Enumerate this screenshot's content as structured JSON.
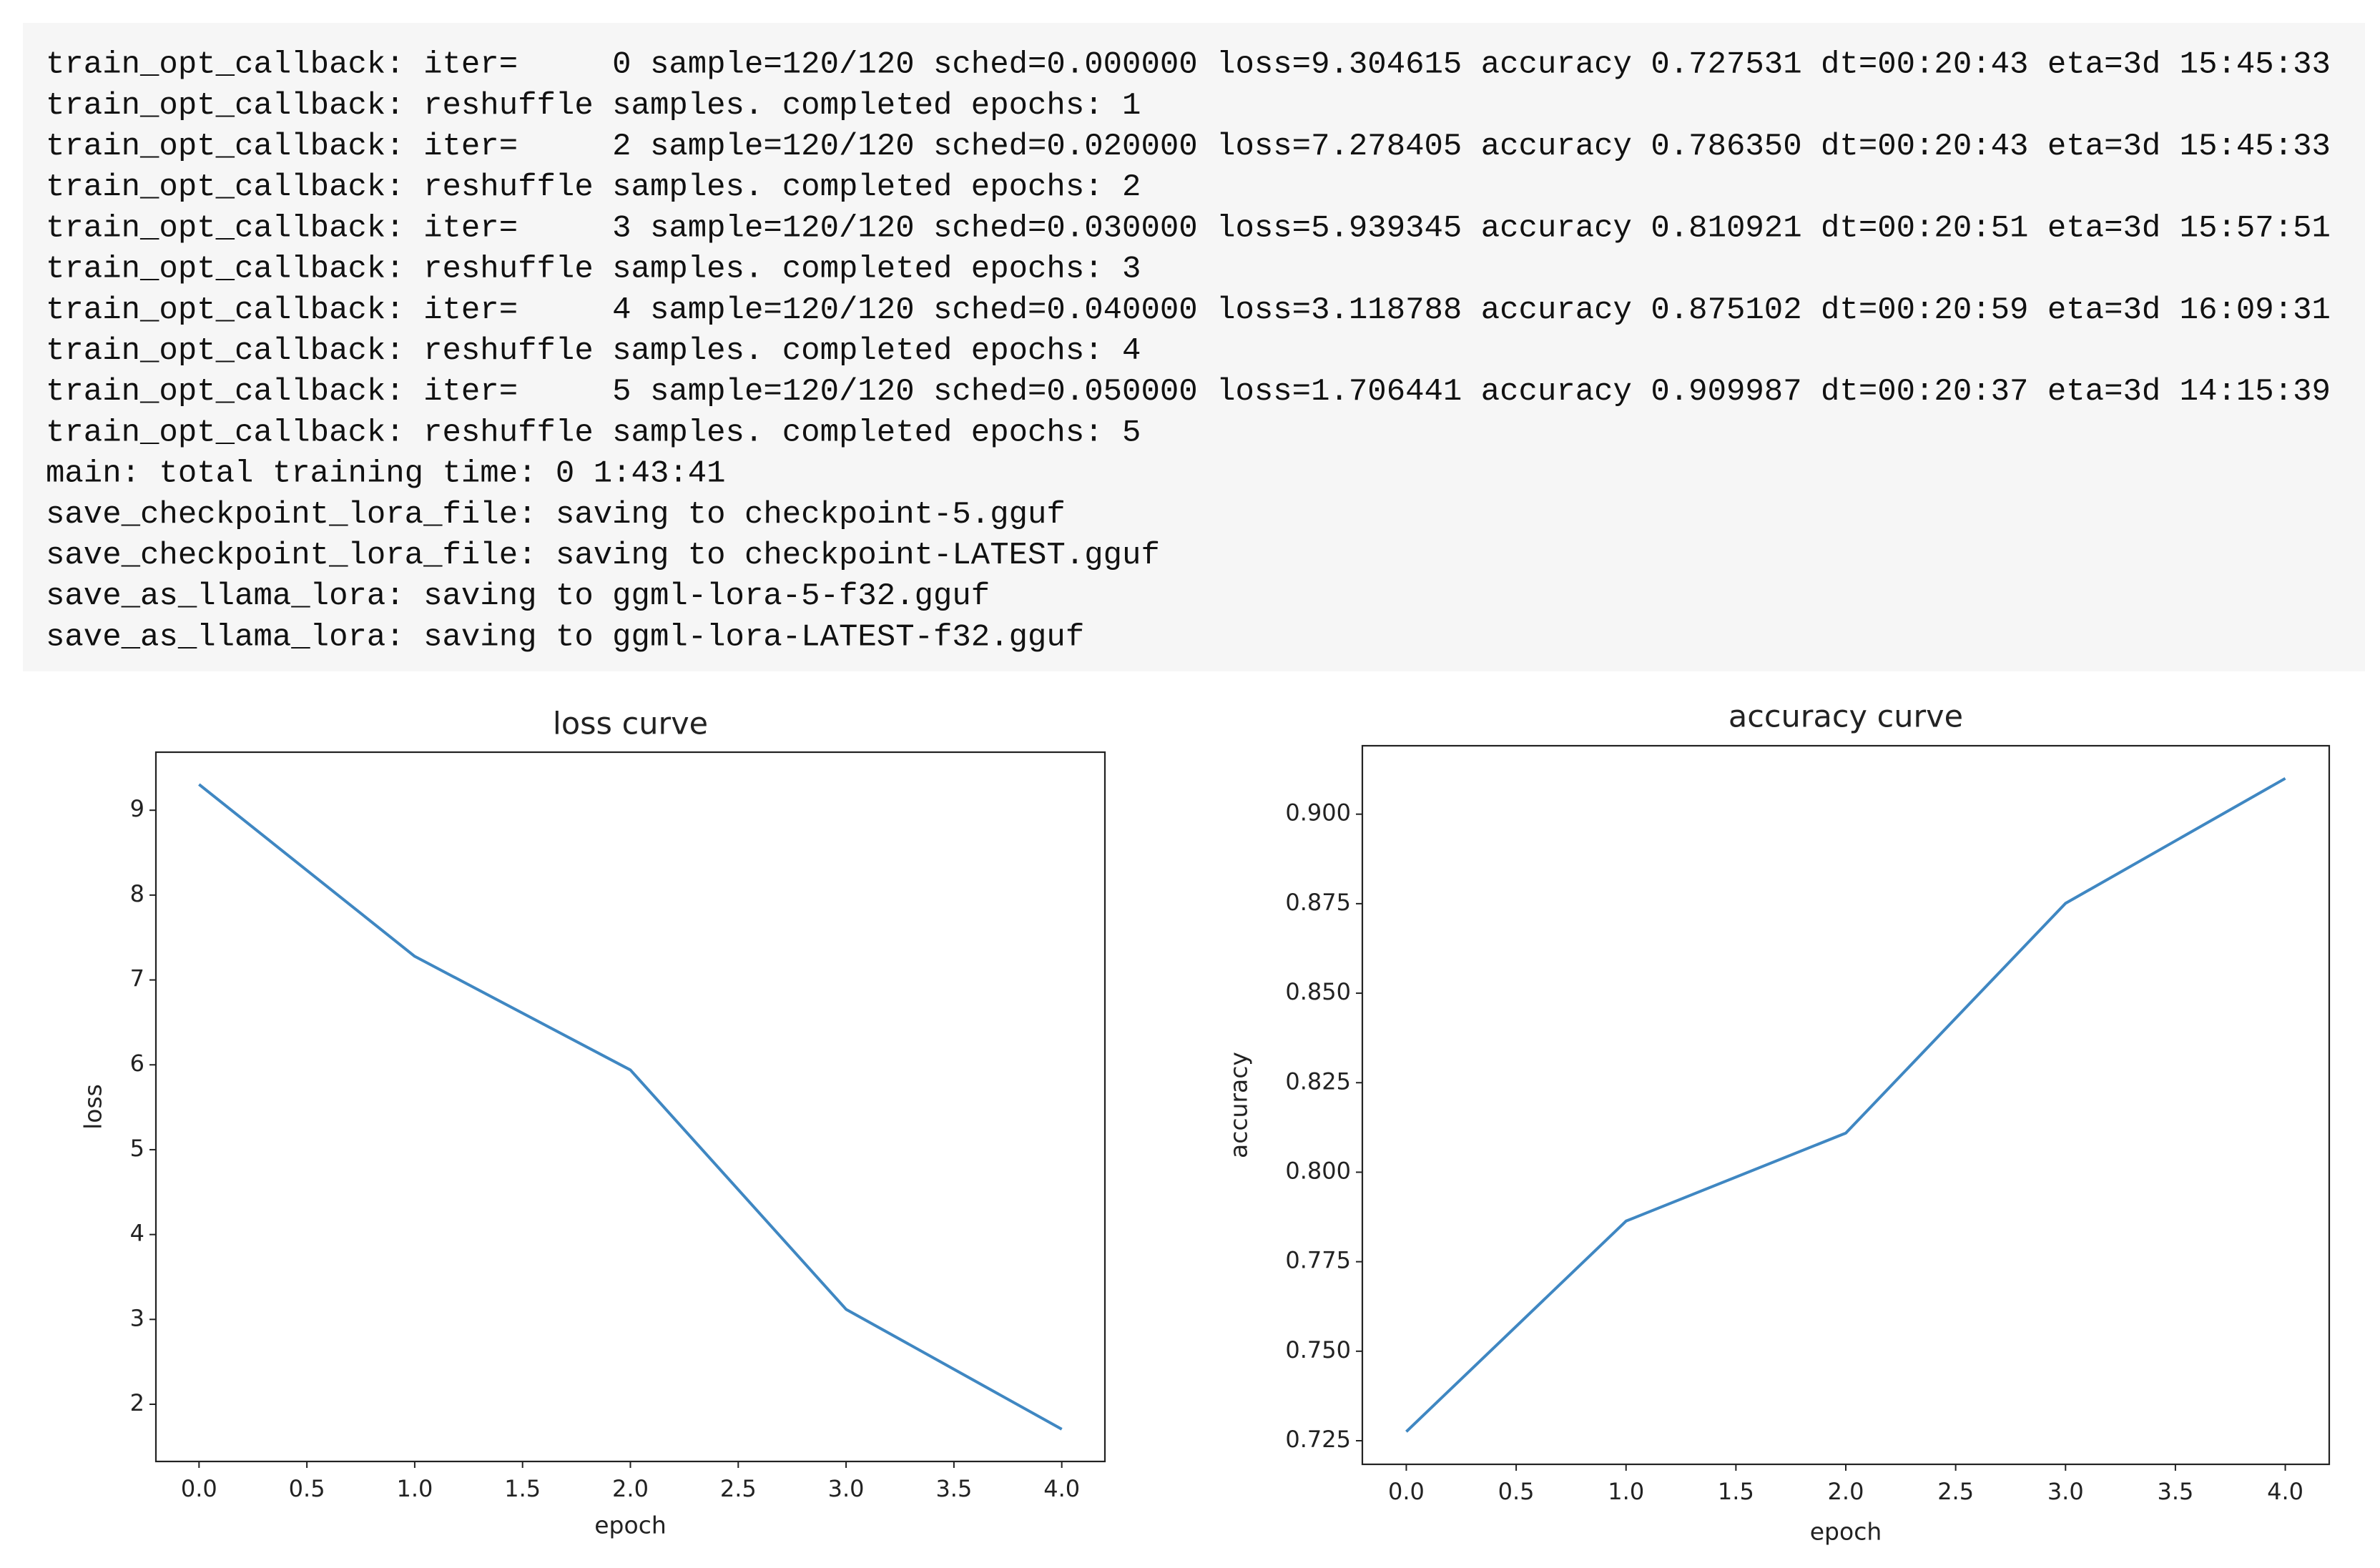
{
  "console": {
    "lines": [
      "train_opt_callback: iter=     0 sample=120/120 sched=0.000000 loss=9.304615 accuracy 0.727531 dt=00:20:43 eta=3d 15:45:33",
      "train_opt_callback: reshuffle samples. completed epochs: 1",
      "train_opt_callback: iter=     2 sample=120/120 sched=0.020000 loss=7.278405 accuracy 0.786350 dt=00:20:43 eta=3d 15:45:33",
      "train_opt_callback: reshuffle samples. completed epochs: 2",
      "train_opt_callback: iter=     3 sample=120/120 sched=0.030000 loss=5.939345 accuracy 0.810921 dt=00:20:51 eta=3d 15:57:51",
      "train_opt_callback: reshuffle samples. completed epochs: 3",
      "train_opt_callback: iter=     4 sample=120/120 sched=0.040000 loss=3.118788 accuracy 0.875102 dt=00:20:59 eta=3d 16:09:31",
      "train_opt_callback: reshuffle samples. completed epochs: 4",
      "train_opt_callback: iter=     5 sample=120/120 sched=0.050000 loss=1.706441 accuracy 0.909987 dt=00:20:37 eta=3d 14:15:39",
      "train_opt_callback: reshuffle samples. completed epochs: 5",
      "main: total training time: 0 1:43:41",
      "save_checkpoint_lora_file: saving to checkpoint-5.gguf",
      "save_checkpoint_lora_file: saving to checkpoint-LATEST.gguf",
      "save_as_llama_lora: saving to ggml-lora-5-f32.gguf",
      "save_as_llama_lora: saving to ggml-lora-LATEST-f32.gguf"
    ]
  },
  "chart_data": [
    {
      "type": "line",
      "title": "loss curve",
      "x_label": "epoch",
      "y_label": "loss",
      "x": [
        0,
        1,
        2,
        3,
        4
      ],
      "series": [
        {
          "name": "loss",
          "color": "#3f87c2",
          "values": [
            9.304615,
            7.278405,
            5.939345,
            3.118788,
            1.706441
          ]
        }
      ],
      "xlim": [
        -0.2,
        4.2
      ],
      "xticks": [
        {
          "value": 0,
          "label": "0.0"
        },
        {
          "value": 0.5,
          "label": "0.5"
        },
        {
          "value": 1,
          "label": "1.0"
        },
        {
          "value": 1.5,
          "label": "1.5"
        },
        {
          "value": 2,
          "label": "2.0"
        },
        {
          "value": 2.5,
          "label": "2.5"
        },
        {
          "value": 3,
          "label": "3.0"
        },
        {
          "value": 3.5,
          "label": "3.5"
        },
        {
          "value": 4,
          "label": "4.0"
        }
      ],
      "ylim": [
        1.326,
        9.684
      ],
      "yticks": [
        2,
        3,
        4,
        5,
        6,
        7,
        8,
        9
      ]
    },
    {
      "type": "line",
      "title": "accuracy curve",
      "x_label": "epoch",
      "y_label": "accuracy",
      "x": [
        0,
        1,
        2,
        3,
        4
      ],
      "series": [
        {
          "name": "accuracy",
          "color": "#3f87c2",
          "values": [
            0.727531,
            0.78635,
            0.810921,
            0.875102,
            0.909987
          ]
        }
      ],
      "xlim": [
        -0.2,
        4.2
      ],
      "xticks": [
        {
          "value": 0,
          "label": "0.0"
        },
        {
          "value": 0.5,
          "label": "0.5"
        },
        {
          "value": 1,
          "label": "1.0"
        },
        {
          "value": 1.5,
          "label": "1.5"
        },
        {
          "value": 2,
          "label": "2.0"
        },
        {
          "value": 2.5,
          "label": "2.5"
        },
        {
          "value": 3,
          "label": "3.0"
        },
        {
          "value": 3.5,
          "label": "3.5"
        },
        {
          "value": 4,
          "label": "4.0"
        }
      ],
      "ylim": [
        0.71841,
        0.91911
      ],
      "yticks": [
        0.725,
        {
          "value": 0.75,
          "label": "0.750"
        },
        0.775,
        {
          "value": 0.8,
          "label": "0.800"
        },
        0.825,
        {
          "value": 0.85,
          "label": "0.850"
        },
        0.875,
        {
          "value": 0.9,
          "label": "0.900"
        }
      ]
    }
  ]
}
